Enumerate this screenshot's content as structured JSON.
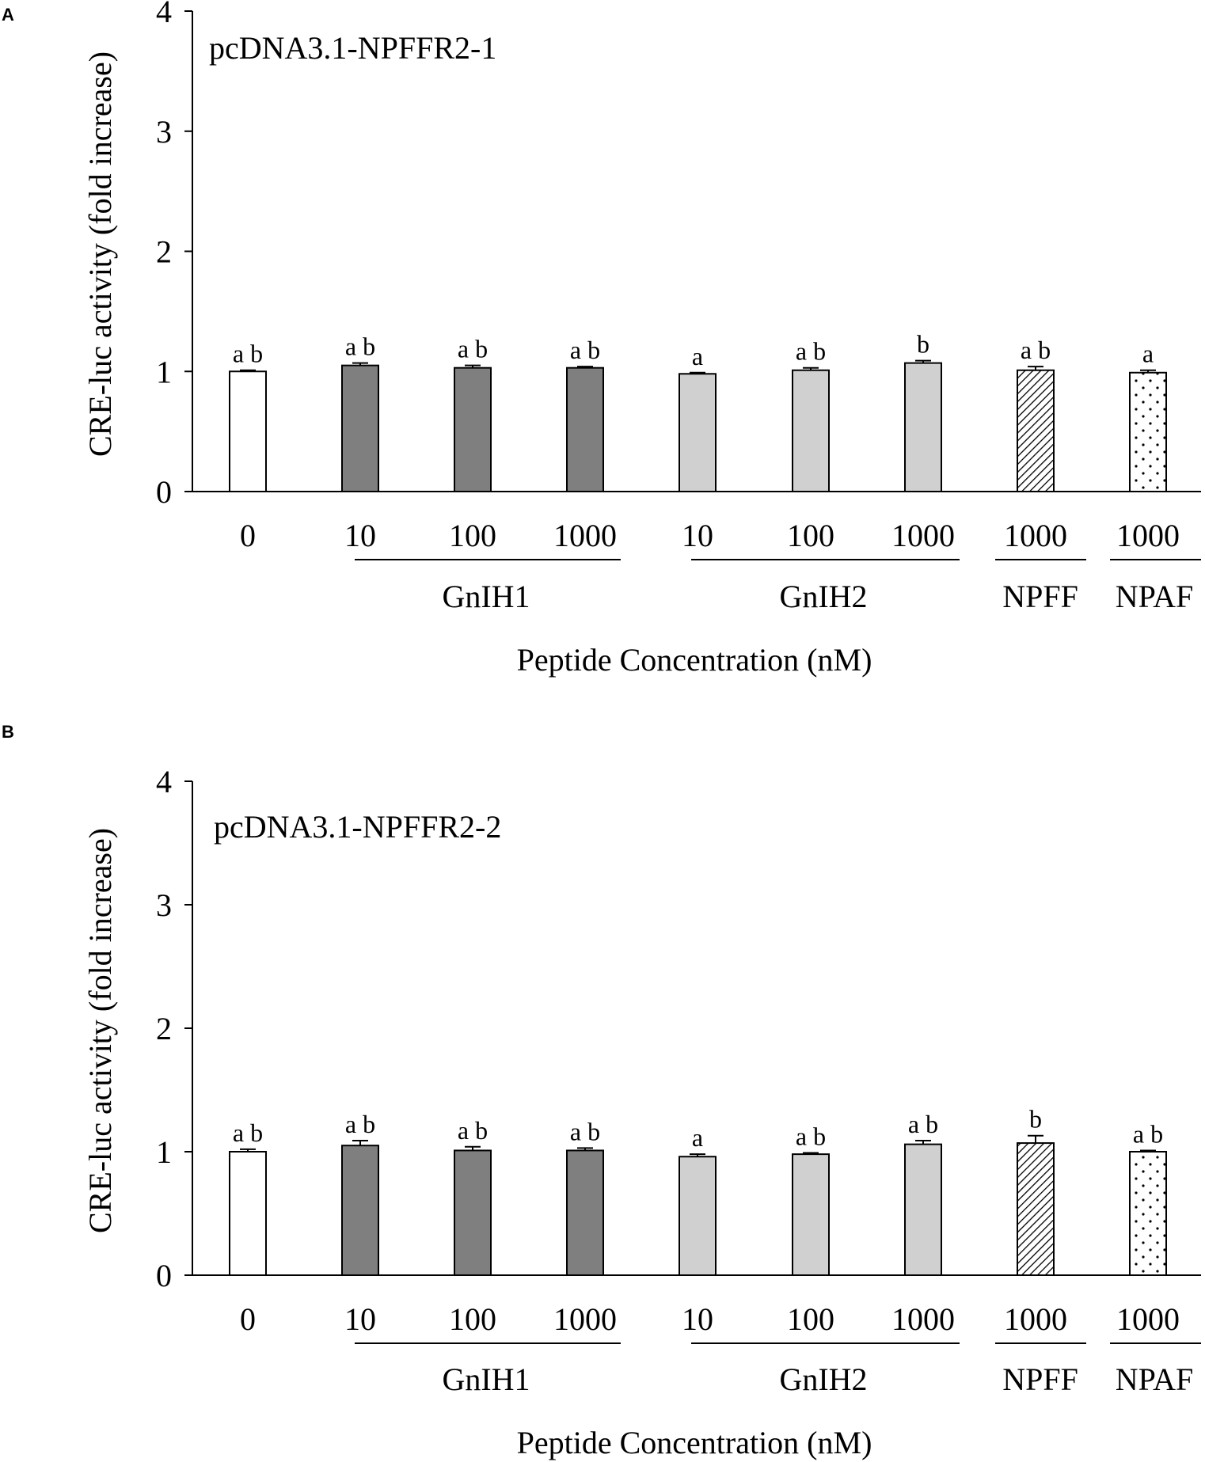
{
  "colors": {
    "control": "#ffffff",
    "gnih1": "#7f7f7f",
    "gnih2": "#d0d0d0",
    "npff": "#ffffff",
    "npaf": "#ffffff",
    "axis": "#000000"
  },
  "chart_data": [
    {
      "type": "bar",
      "panel_label": "A",
      "inset_title": "pcDNA3.1-NPFFR2-1",
      "ylabel": "CRE-luc activity (fold increase)",
      "xlabel": "Peptide Concentration (nM)",
      "ylim": [
        0,
        4
      ],
      "yticks": [
        "0",
        "1",
        "2",
        "3",
        "4"
      ],
      "categories": [
        "0",
        "10",
        "100",
        "1000",
        "10",
        "100",
        "1000",
        "1000",
        "1000"
      ],
      "values": [
        1.0,
        1.05,
        1.03,
        1.03,
        0.98,
        1.01,
        1.07,
        1.01,
        0.99
      ],
      "errors": [
        0.01,
        0.02,
        0.02,
        0.01,
        0.01,
        0.02,
        0.02,
        0.03,
        0.02
      ],
      "significance": [
        "a b",
        "a b",
        "a b",
        "a b",
        "a",
        "a b",
        "b",
        "a b",
        "a"
      ],
      "bar_groups": [
        "control",
        "gnih1",
        "gnih1",
        "gnih1",
        "gnih2",
        "gnih2",
        "gnih2",
        "npff",
        "npaf"
      ],
      "group_labels": [
        "GnIH1",
        "GnIH2",
        "NPFF",
        "NPAF"
      ]
    },
    {
      "type": "bar",
      "panel_label": "B",
      "inset_title": "pcDNA3.1-NPFFR2-2",
      "ylabel": "CRE-luc activity (fold increase)",
      "xlabel": "Peptide Concentration (nM)",
      "ylim": [
        0,
        4
      ],
      "yticks": [
        "0",
        "1",
        "2",
        "3",
        "4"
      ],
      "categories": [
        "0",
        "10",
        "100",
        "1000",
        "10",
        "100",
        "1000",
        "1000",
        "1000"
      ],
      "values": [
        1.0,
        1.05,
        1.01,
        1.01,
        0.96,
        0.98,
        1.06,
        1.07,
        1.0
      ],
      "errors": [
        0.02,
        0.04,
        0.03,
        0.02,
        0.02,
        0.01,
        0.03,
        0.06,
        0.01
      ],
      "significance": [
        "a b",
        "a b",
        "a b",
        "a b",
        "a",
        "a b",
        "a b",
        "b",
        "a b"
      ],
      "bar_groups": [
        "control",
        "gnih1",
        "gnih1",
        "gnih1",
        "gnih2",
        "gnih2",
        "gnih2",
        "npff",
        "npaf"
      ],
      "group_labels": [
        "GnIH1",
        "GnIH2",
        "NPFF",
        "NPAF"
      ]
    }
  ]
}
